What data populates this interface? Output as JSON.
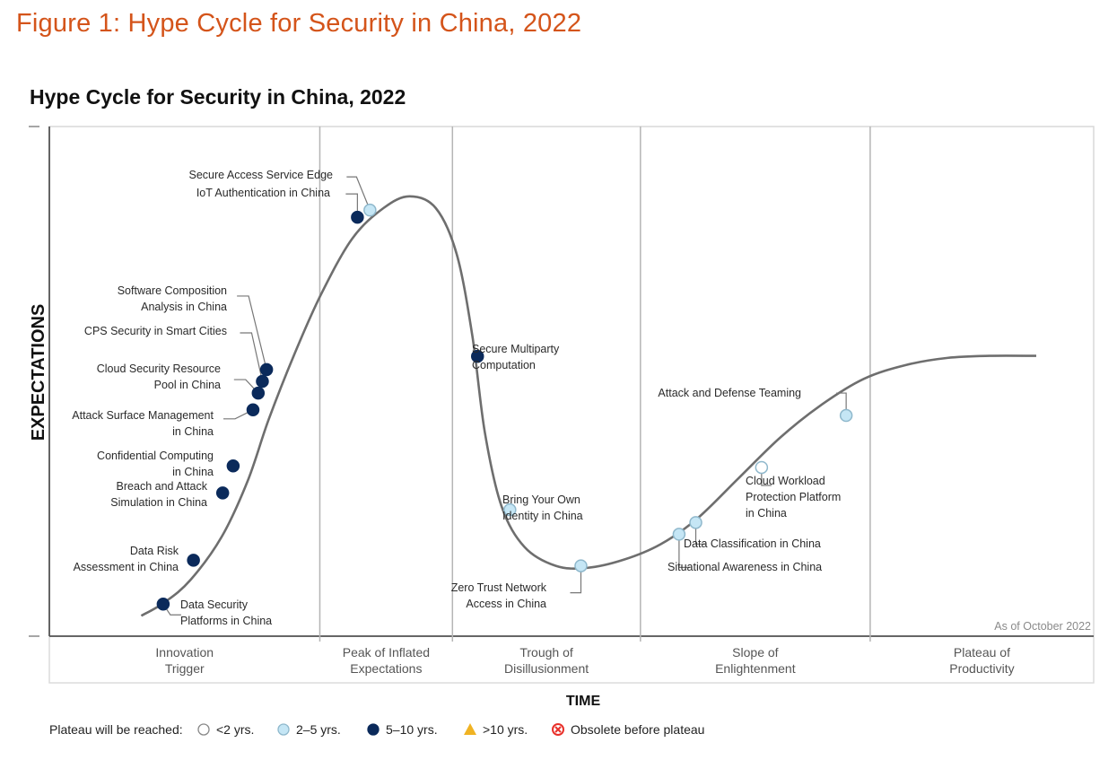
{
  "figure_title": "Figure 1: Hype Cycle for Security in China, 2022",
  "chart_data": {
    "type": "scatter",
    "subtype": "hype-cycle",
    "title": "Hype Cycle for Security in China, 2022",
    "xlabel": "TIME",
    "ylabel": "EXPECTATIONS",
    "annotation": "As of October 2022",
    "grid": false,
    "x_range": [
      0,
      100
    ],
    "y_range": [
      0,
      100
    ],
    "phases": [
      {
        "name": "Innovation Trigger",
        "lines": [
          "Innovation",
          "Trigger"
        ],
        "x_start": 0,
        "x_end": 25.9
      },
      {
        "name": "Peak of Inflated Expectations",
        "lines": [
          "Peak of Inflated",
          "Expectations"
        ],
        "x_start": 25.9,
        "x_end": 38.6
      },
      {
        "name": "Trough of Disillusionment",
        "lines": [
          "Trough of",
          "Disillusionment"
        ],
        "x_start": 38.6,
        "x_end": 56.6
      },
      {
        "name": "Slope of Enlightenment",
        "lines": [
          "Slope of",
          "Enlightenment"
        ],
        "x_start": 56.6,
        "x_end": 78.6
      },
      {
        "name": "Plateau of Productivity",
        "lines": [
          "Plateau of",
          "Productivity"
        ],
        "x_start": 78.6,
        "x_end": 100
      }
    ],
    "legend_title": "Plateau will be reached:",
    "legend": [
      {
        "key": "lt2",
        "label": "<2 yrs.",
        "marker": "circle-white",
        "color": "#ffffff"
      },
      {
        "key": "2to5",
        "label": "2–5 yrs.",
        "marker": "circle-light",
        "color": "#c5e6f5"
      },
      {
        "key": "5to10",
        "label": "5–10 yrs.",
        "marker": "circle-dark",
        "color": "#0b2a5b"
      },
      {
        "key": "gt10",
        "label": ">10 yrs.",
        "marker": "triangle",
        "color": "#f0b323"
      },
      {
        "key": "obsolete",
        "label": "Obsolete before plateau",
        "marker": "x-circle",
        "color": "#e8302a"
      }
    ],
    "curve": [
      [
        8.8,
        4.0
      ],
      [
        11.0,
        6.6
      ],
      [
        13.5,
        11.0
      ],
      [
        16.5,
        19.5
      ],
      [
        19.0,
        30.5
      ],
      [
        21.0,
        42.5
      ],
      [
        23.5,
        55.5
      ],
      [
        26.0,
        67.0
      ],
      [
        29.0,
        78.0
      ],
      [
        32.0,
        84.0
      ],
      [
        34.5,
        86.3
      ],
      [
        37.0,
        84.0
      ],
      [
        39.0,
        75.0
      ],
      [
        40.5,
        59.0
      ],
      [
        41.7,
        40.0
      ],
      [
        43.3,
        25.5
      ],
      [
        45.5,
        17.5
      ],
      [
        48.5,
        13.8
      ],
      [
        51.5,
        13.4
      ],
      [
        55.0,
        15.0
      ],
      [
        58.5,
        18.0
      ],
      [
        62.0,
        23.0
      ],
      [
        66.0,
        31.0
      ],
      [
        70.0,
        39.0
      ],
      [
        74.0,
        45.5
      ],
      [
        78.0,
        50.5
      ],
      [
        82.0,
        53.2
      ],
      [
        86.0,
        54.6
      ],
      [
        90.0,
        55.0
      ],
      [
        94.5,
        55.0
      ]
    ],
    "points": [
      {
        "name": "Data Security Platforms in China",
        "lines": [
          "Data Security",
          "Platforms in China"
        ],
        "x": 10.9,
        "y": 6.3,
        "plateau": "5to10"
      },
      {
        "name": "Data Risk Assessment in China",
        "lines": [
          "Data Risk",
          "Assessment in China"
        ],
        "x": 13.8,
        "y": 14.9,
        "plateau": "5to10"
      },
      {
        "name": "Breach and Attack Simulation in China",
        "lines": [
          "Breach and Attack",
          "Simulation in China"
        ],
        "x": 16.6,
        "y": 28.1,
        "plateau": "5to10"
      },
      {
        "name": "Confidential Computing in China",
        "lines": [
          "Confidential Computing",
          "in China"
        ],
        "x": 17.6,
        "y": 33.4,
        "plateau": "5to10"
      },
      {
        "name": "Attack Surface Management in China",
        "lines": [
          "Attack Surface Management",
          "in China"
        ],
        "x": 19.5,
        "y": 44.4,
        "plateau": "5to10"
      },
      {
        "name": "Cloud Security Resource Pool in China",
        "lines": [
          "Cloud Security Resource",
          "Pool in China"
        ],
        "x": 20.0,
        "y": 47.7,
        "plateau": "5to10"
      },
      {
        "name": "CPS Security in Smart Cities",
        "lines": [
          "CPS Security in Smart Cities"
        ],
        "x": 20.4,
        "y": 50.0,
        "plateau": "5to10"
      },
      {
        "name": "Software Composition Analysis in China",
        "lines": [
          "Software Composition",
          "Analysis in China"
        ],
        "x": 20.8,
        "y": 52.3,
        "plateau": "5to10"
      },
      {
        "name": "IoT Authentication in China",
        "lines": [
          "IoT Authentication in China"
        ],
        "x": 29.5,
        "y": 82.2,
        "plateau": "5to10"
      },
      {
        "name": "Secure Access Service Edge",
        "lines": [
          "Secure Access Service Edge"
        ],
        "x": 30.7,
        "y": 83.6,
        "plateau": "2to5"
      },
      {
        "name": "Secure Multiparty Computation",
        "lines": [
          "Secure Multiparty",
          "Computation"
        ],
        "x": 41.0,
        "y": 54.9,
        "plateau": "5to10"
      },
      {
        "name": "Bring Your Own Identity in China",
        "lines": [
          "Bring Your Own",
          "Identity in China"
        ],
        "x": 44.1,
        "y": 24.8,
        "plateau": "2to5"
      },
      {
        "name": "Zero Trust Network Access in China",
        "lines": [
          "Zero Trust Network",
          "Access in China"
        ],
        "x": 50.9,
        "y": 13.8,
        "plateau": "2to5"
      },
      {
        "name": "Situational Awareness in China",
        "lines": [
          "Situational Awareness in China"
        ],
        "x": 60.3,
        "y": 20.0,
        "plateau": "2to5"
      },
      {
        "name": "Data Classification in China",
        "lines": [
          "Data Classification in China"
        ],
        "x": 61.9,
        "y": 22.3,
        "plateau": "2to5"
      },
      {
        "name": "Cloud Workload Protection Platform in China",
        "lines": [
          "Cloud Workload",
          "Protection Platform",
          "in China"
        ],
        "x": 68.2,
        "y": 33.1,
        "plateau": "lt2"
      },
      {
        "name": "Attack and Defense Teaming",
        "lines": [
          "Attack and Defense Teaming"
        ],
        "x": 76.3,
        "y": 43.3,
        "plateau": "2to5"
      }
    ]
  }
}
